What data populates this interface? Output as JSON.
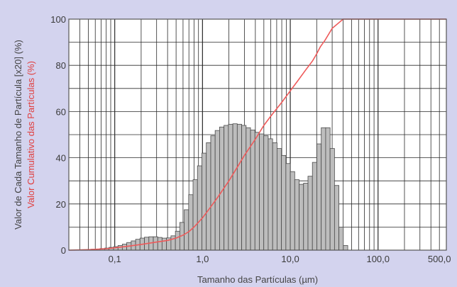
{
  "chart_data": {
    "type": "bar",
    "xlabel": "Tamanho das Partículas (µm)",
    "ylabel": "Valor de Cada Tamanho de Partícula [x20] (%)",
    "y2label": "Valor Cumulativo das Partículas (%)",
    "x_scale": "log",
    "xlim": [
      0.03,
      600
    ],
    "ylim": [
      0,
      100
    ],
    "y_ticks": [
      "0",
      "20",
      "40",
      "60",
      "80",
      "100"
    ],
    "x_ticks": [
      {
        "value": 0.1,
        "label": "0,1"
      },
      {
        "value": 1,
        "label": "1,0"
      },
      {
        "value": 10,
        "label": "10,0"
      },
      {
        "value": 100,
        "label": "100,0"
      },
      {
        "value": 500,
        "label": "500,0"
      }
    ],
    "grid": true,
    "colors": {
      "bars": "#bdbdbd",
      "bar_edge": "#4a4a4a",
      "cumulative": "#ee5a5a",
      "grid": "#2a2a2a",
      "plot_bg": "#ffffff",
      "background": "#d3d3ee",
      "xlabel": "#444444",
      "ylabel": "#444444",
      "y2label": "#e04040"
    },
    "series": [
      {
        "type": "bar",
        "x": [
          0.03,
          0.034,
          0.038,
          0.043,
          0.048,
          0.054,
          0.061,
          0.068,
          0.077,
          0.086,
          0.097,
          0.109,
          0.122,
          0.137,
          0.154,
          0.173,
          0.194,
          0.218,
          0.245,
          0.275,
          0.309,
          0.346,
          0.389,
          0.437,
          0.491,
          0.551,
          0.619,
          0.695,
          0.78,
          0.876,
          0.984,
          1.105,
          1.241,
          1.393,
          1.565,
          1.757,
          1.973,
          2.216,
          2.488,
          2.794,
          3.138,
          3.523,
          3.957,
          4.443,
          4.989,
          5.603,
          6.292,
          7.065,
          7.934,
          8.909,
          10.005,
          11.235,
          12.616,
          14.167,
          15.909,
          17.865,
          20.061,
          22.527,
          25.297,
          28.406,
          31.899,
          35.82,
          40.224,
          45.169
        ],
        "values": [
          0,
          0,
          0.1,
          0.2,
          0.3,
          0.4,
          0.5,
          0.7,
          0.9,
          1.2,
          1.5,
          2,
          2.6,
          3.3,
          4,
          4.7,
          5.2,
          5.6,
          5.8,
          5.8,
          5.5,
          5.2,
          5.3,
          6.2,
          8.2,
          12,
          17.5,
          24,
          30.5,
          36.5,
          42,
          46.5,
          49.5,
          51.8,
          53.3,
          54,
          54.5,
          54.7,
          54.5,
          54,
          53,
          52,
          51,
          50.3,
          49.5,
          48.2,
          46.5,
          44,
          41,
          37.5,
          34,
          30.5,
          28.5,
          29,
          32,
          38,
          46,
          53,
          53,
          44,
          28,
          10,
          2,
          0
        ]
      },
      {
        "type": "line",
        "x": [
          0.03,
          0.05,
          0.08,
          0.1,
          0.15,
          0.2,
          0.3,
          0.4,
          0.5,
          0.6,
          0.7,
          0.8,
          1,
          1.2,
          1.5,
          2,
          2.5,
          3,
          4,
          5,
          6,
          8,
          10,
          12,
          15,
          18,
          20,
          22,
          25,
          30,
          40,
          50,
          100,
          200,
          600
        ],
        "values": [
          0,
          0.2,
          0.6,
          1,
          1.8,
          2.5,
          3.5,
          4.2,
          5.2,
          6.5,
          8,
          10,
          14,
          18,
          23,
          30,
          36,
          41,
          48,
          54,
          58,
          64,
          69,
          73,
          78,
          82,
          85,
          88,
          91,
          96,
          100,
          100,
          100,
          100,
          100
        ]
      }
    ]
  }
}
